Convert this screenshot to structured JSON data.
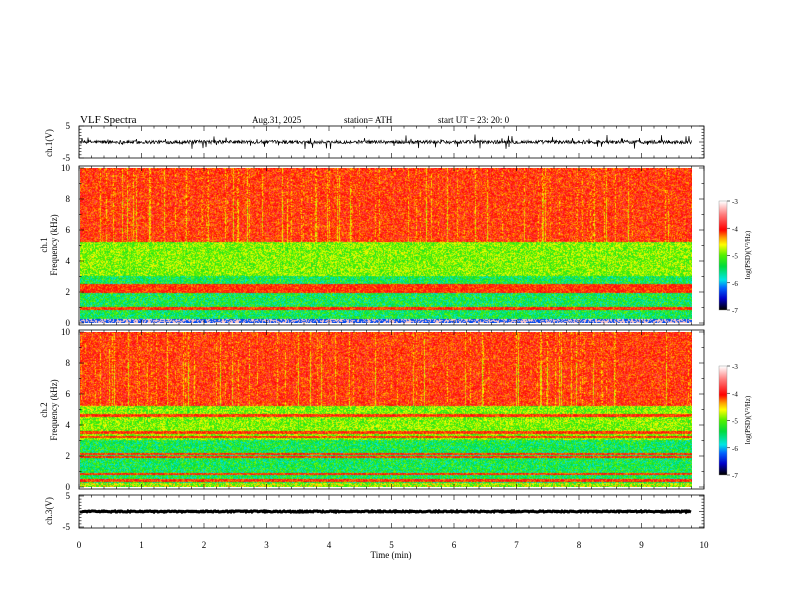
{
  "header": {
    "title": "VLF  Spectra",
    "date": "Aug.31, 2025",
    "station": "station= ATH",
    "start_ut": "start  UT  =    23: 20: 0"
  },
  "chart_data": [
    {
      "type": "line",
      "name": "ch1-waveform",
      "ylabel": "ch.1(V)",
      "ylim": [
        -5,
        5
      ],
      "yticks": [
        "5",
        "-5"
      ],
      "xlim": [
        0,
        10
      ],
      "data_end_min": 9.8
    },
    {
      "type": "heatmap",
      "name": "ch1-spectrogram",
      "ylabel": "ch.1\nFrequency  (kHz)",
      "ylabel_lines": [
        "ch.1",
        "Frequency  (kHz)"
      ],
      "ylim": [
        0,
        10
      ],
      "yticks": [
        "0",
        "2",
        "4",
        "6",
        "8",
        "10"
      ],
      "xlim": [
        0,
        10
      ],
      "data_end_min": 9.8,
      "colorbar": {
        "label": "log(PSD)(V²/Hz)",
        "range": [
          -7,
          -3
        ],
        "ticks": [
          "-3",
          "-4",
          "-5",
          "-6",
          "-7"
        ]
      },
      "bands_kHz": [
        0.9,
        2.0,
        2.2,
        2.4
      ]
    },
    {
      "type": "heatmap",
      "name": "ch2-spectrogram",
      "ylabel_lines": [
        "ch.2",
        "Frequency  (kHz)"
      ],
      "ylim": [
        0,
        10
      ],
      "yticks": [
        "0",
        "2",
        "4",
        "6",
        "8",
        "10"
      ],
      "xlim": [
        0,
        10
      ],
      "data_end_min": 9.8,
      "colorbar": {
        "label": "log(PSD)(V²/Hz)",
        "range": [
          -7,
          -3
        ],
        "ticks": [
          "-3",
          "-4",
          "-5",
          "-6",
          "-7"
        ]
      },
      "bands_kHz": [
        0.4,
        0.8,
        1.9,
        2.1,
        3.2,
        3.5,
        4.6
      ]
    },
    {
      "type": "line",
      "name": "ch3-waveform",
      "ylabel": "ch.3(V)",
      "ylim": [
        -5,
        5
      ],
      "yticks": [
        "5",
        "-5"
      ],
      "xlim": [
        0,
        10
      ],
      "data_end_min": 9.8,
      "approx_level": -1.5
    },
    {
      "xlabel": "Time  (min)",
      "xticks": [
        "0",
        "1",
        "2",
        "3",
        "4",
        "5",
        "6",
        "7",
        "8",
        "9",
        "10"
      ]
    }
  ]
}
